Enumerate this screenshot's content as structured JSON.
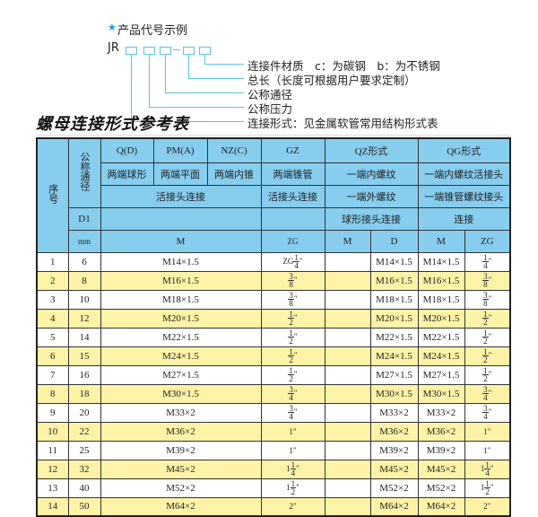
{
  "diagram": {
    "star_icon": "star-icon",
    "title": "产品代号示例",
    "code_prefix": "JR",
    "labels": [
      "连接件材质　c：为碳钢　b：为不锈钢",
      "总长（长度可根据用户要求定制）",
      "公称通径",
      "公称压力",
      "连接形式：见金属软管常用结构形式表"
    ],
    "line_color": "#5bc3d9"
  },
  "table_title": "螺母连接形式参考表",
  "header": {
    "seq": "序号",
    "nominal": "公称通径",
    "q": "Q(D)",
    "pm": "PM(A)",
    "nz": "NZ(C)",
    "gz": "GZ",
    "qz": "QZ形式",
    "qg": "QG形式",
    "q2": "两端球形",
    "pm2": "两端平面",
    "nz2": "两端内锥",
    "gz2": "两端锥管",
    "qz2": "一端内螺纹",
    "qg2": "一端内螺纹活接头",
    "union1": "活接头连接",
    "gz3": "活接头连接",
    "qz3": "一端外螺纹",
    "qg3": "一端锥管螺纹接头",
    "d1": "D1",
    "qz4": "球形接头连接",
    "qg4": "连接",
    "mm": "mm",
    "m": "M",
    "zg": "ZG",
    "qz_m": "M",
    "qz_d": "D",
    "qg_m": "M",
    "qg_zg": "ZG"
  },
  "colors": {
    "header_bg": "#86cdee",
    "alt_row_bg": "#fdf3a7"
  },
  "rows": [
    {
      "no": "1",
      "dn": "6",
      "m": "M14×1.5",
      "zg": {
        "pre": "ZG",
        "num": "1",
        "den": "4",
        "suf": "\""
      },
      "qz_m": "",
      "qz_d": "M14×1.5",
      "qg_m": "M14×1.5",
      "qg_zg": {
        "pre": "",
        "num": "1",
        "den": "4",
        "suf": "\""
      }
    },
    {
      "no": "2",
      "dn": "8",
      "m": "M16×1.5",
      "zg": {
        "pre": "",
        "num": "3",
        "den": "8",
        "suf": "\""
      },
      "qz_m": "",
      "qz_d": "M16×1.5",
      "qg_m": "M16×1.5",
      "qg_zg": {
        "pre": "",
        "num": "3",
        "den": "8",
        "suf": "\""
      }
    },
    {
      "no": "3",
      "dn": "10",
      "m": "M18×1.5",
      "zg": {
        "pre": "",
        "num": "3",
        "den": "8",
        "suf": "\""
      },
      "qz_m": "",
      "qz_d": "M18×1.5",
      "qg_m": "M18×1.5",
      "qg_zg": {
        "pre": "",
        "num": "3",
        "den": "8",
        "suf": "\""
      }
    },
    {
      "no": "4",
      "dn": "12",
      "m": "M20×1.5",
      "zg": {
        "pre": "",
        "num": "1",
        "den": "2",
        "suf": "\""
      },
      "qz_m": "",
      "qz_d": "M20×1.5",
      "qg_m": "M20×1.5",
      "qg_zg": {
        "pre": "",
        "num": "1",
        "den": "2",
        "suf": "\""
      }
    },
    {
      "no": "5",
      "dn": "14",
      "m": "M22×1.5",
      "zg": {
        "pre": "",
        "num": "1",
        "den": "2",
        "suf": "\""
      },
      "qz_m": "",
      "qz_d": "M22×1.5",
      "qg_m": "M22×1.5",
      "qg_zg": {
        "pre": "",
        "num": "1",
        "den": "2",
        "suf": "\""
      }
    },
    {
      "no": "6",
      "dn": "15",
      "m": "M24×1.5",
      "zg": {
        "pre": "",
        "num": "1",
        "den": "2",
        "suf": "\""
      },
      "qz_m": "",
      "qz_d": "M24×1.5",
      "qg_m": "M24×1.5",
      "qg_zg": {
        "pre": "",
        "num": "1",
        "den": "2",
        "suf": "\""
      }
    },
    {
      "no": "7",
      "dn": "16",
      "m": "M27×1.5",
      "zg": {
        "pre": "",
        "num": "1",
        "den": "2",
        "suf": "\""
      },
      "qz_m": "",
      "qz_d": "M27×1.5",
      "qg_m": "M27×1.5",
      "qg_zg": {
        "pre": "",
        "num": "1",
        "den": "2",
        "suf": "\""
      }
    },
    {
      "no": "8",
      "dn": "18",
      "m": "M30×1.5",
      "zg": {
        "pre": "",
        "num": "3",
        "den": "4",
        "suf": "\""
      },
      "qz_m": "",
      "qz_d": "M30×1.5",
      "qg_m": "M30×1.5",
      "qg_zg": {
        "pre": "",
        "num": "3",
        "den": "4",
        "suf": "\""
      }
    },
    {
      "no": "9",
      "dn": "20",
      "m": "M33×2",
      "zg": {
        "pre": "",
        "num": "3",
        "den": "4",
        "suf": "\""
      },
      "qz_m": "",
      "qz_d": "M33×2",
      "qg_m": "M33×2",
      "qg_zg": {
        "pre": "",
        "num": "3",
        "den": "4",
        "suf": "\""
      }
    },
    {
      "no": "10",
      "dn": "22",
      "m": "M36×2",
      "zg": {
        "pre": "1\"",
        "num": "",
        "den": "",
        "suf": ""
      },
      "qz_m": "",
      "qz_d": "M36×2",
      "qg_m": "M36×2",
      "qg_zg": {
        "pre": "1\"",
        "num": "",
        "den": "",
        "suf": ""
      }
    },
    {
      "no": "11",
      "dn": "25",
      "m": "M39×2",
      "zg": {
        "pre": "1\"",
        "num": "",
        "den": "",
        "suf": ""
      },
      "qz_m": "",
      "qz_d": "M39×2",
      "qg_m": "M39×2",
      "qg_zg": {
        "pre": "1\"",
        "num": "",
        "den": "",
        "suf": ""
      }
    },
    {
      "no": "12",
      "dn": "32",
      "m": "M45×2",
      "zg": {
        "pre": "1",
        "num": "1",
        "den": "4",
        "suf": "\""
      },
      "qz_m": "",
      "qz_d": "M45×2",
      "qg_m": "M45×2",
      "qg_zg": {
        "pre": "1",
        "num": "1",
        "den": "4",
        "suf": "\""
      }
    },
    {
      "no": "13",
      "dn": "40",
      "m": "M52×2",
      "zg": {
        "pre": "1",
        "num": "1",
        "den": "2",
        "suf": "\""
      },
      "qz_m": "",
      "qz_d": "M52×2",
      "qg_m": "M52×2",
      "qg_zg": {
        "pre": "1",
        "num": "1",
        "den": "2",
        "suf": "\""
      }
    },
    {
      "no": "14",
      "dn": "50",
      "m": "M64×2",
      "zg": {
        "pre": "2\"",
        "num": "",
        "den": "",
        "suf": ""
      },
      "qz_m": "",
      "qz_d": "M64×2",
      "qg_m": "M64×2",
      "qg_zg": {
        "pre": "2\"",
        "num": "",
        "den": "",
        "suf": ""
      }
    }
  ]
}
